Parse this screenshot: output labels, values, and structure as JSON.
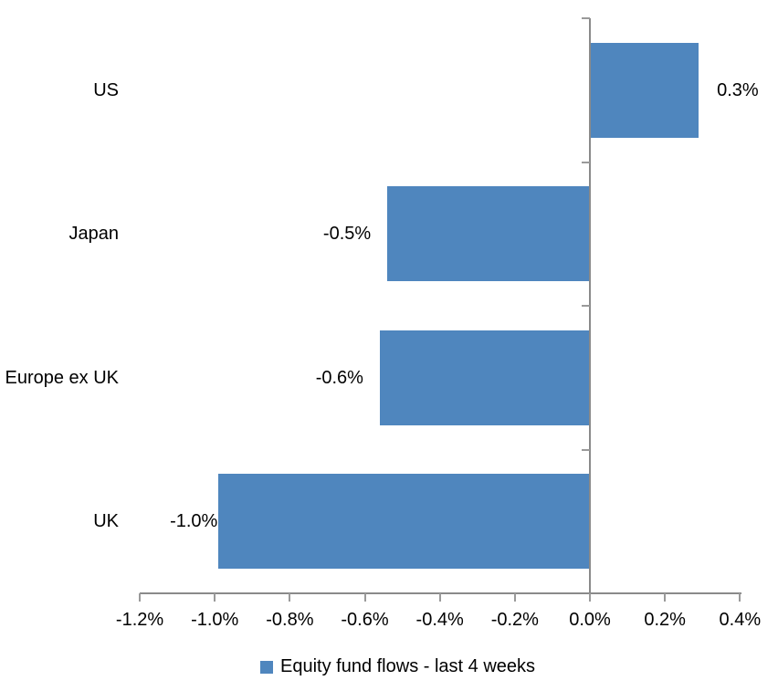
{
  "chart_data": {
    "type": "bar",
    "orientation": "horizontal",
    "categories": [
      "US",
      "Japan",
      "Europe ex UK",
      "UK"
    ],
    "values": [
      0.29,
      -0.54,
      -0.56,
      -0.99
    ],
    "value_labels": [
      "0.3%",
      "-0.5%",
      "-0.6%",
      "-1.0%"
    ],
    "x_axis": {
      "min": -1.2,
      "max": 0.4,
      "step": 0.2,
      "tick_labels": [
        "-1.2%",
        "-1.0%",
        "-0.8%",
        "-0.6%",
        "-0.4%",
        "-0.2%",
        "0.0%",
        "0.2%",
        "0.4%"
      ]
    },
    "grid": false,
    "legend": {
      "position": "bottom",
      "entries": [
        {
          "label": "Equity fund flows - last 4 weeks",
          "color": "#4F86BE"
        }
      ]
    },
    "colors": {
      "bar": "#4F86BE",
      "axis_line": "#8A8A8A",
      "tick": "#9A9A9A",
      "text": "#000000",
      "background": "#FFFFFF"
    }
  }
}
